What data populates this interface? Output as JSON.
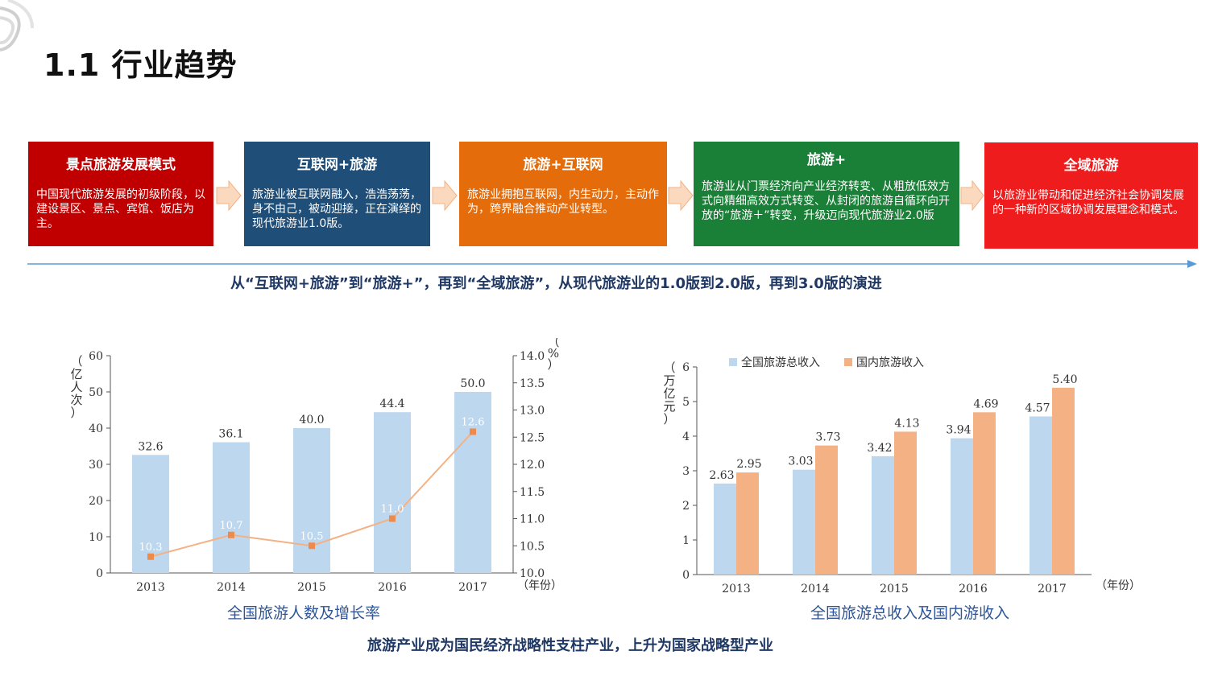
{
  "title": "1.1 行业趋势",
  "colors": {
    "stage1": "#c00000",
    "stage2": "#1f4e79",
    "stage3": "#e46c0a",
    "stage4": "#1a7f37",
    "stage5": "#ee1c1c",
    "caption": "#1f3864",
    "bar_blue": "#bdd7ee",
    "bar_orange": "#f4b183",
    "line": "#f4b183"
  },
  "stages": [
    {
      "head": "景点旅游发展模式",
      "desc": "中国现代旅游发展的初级阶段，以建设景区、景点、宾馆、饭店为主。"
    },
    {
      "head": "互联网+旅游",
      "desc": "旅游业被互联网融入，浩浩荡荡，身不由己，被动迎接，正在演绎的现代旅游业1.0版。"
    },
    {
      "head": "旅游+互联网",
      "desc": "旅游业拥抱互联网，内生动力，主动作为，跨界融合推动产业转型。"
    },
    {
      "head": "旅游+",
      "desc": "旅游业从门票经济向产业经济转变、从粗放低效方式向精细高效方式转变、从封闭的旅游自循环向开放的“旅游＋”转变，升级迈向现代旅游业2.0版"
    },
    {
      "head": "全域旅游",
      "desc": "以旅游业带动和促进经济社会协调发展的一种新的区域协调发展理念和模式。"
    }
  ],
  "timeline_caption": "从“互联网+旅游”到“旅游+”，再到“全域旅游”，从现代旅游业的1.0版到2.0版，再到3.0版的演进",
  "bottom_caption": "旅游产业成为国民经济战略性支柱产业，上升为国家战略型产业",
  "chart_data": [
    {
      "type": "bar",
      "title": "全国旅游人数及增长率",
      "categories": [
        "2013",
        "2014",
        "2015",
        "2016",
        "2017"
      ],
      "x_unit": "（年份）",
      "ylabel": "（亿人次）",
      "ylim": [
        0,
        60
      ],
      "yticks": [
        "0",
        "10",
        "20",
        "30",
        "40",
        "50",
        "60"
      ],
      "series": [
        {
          "kind": "bar",
          "values": [
            32.6,
            36.1,
            40.0,
            44.4,
            50.0
          ],
          "labels": [
            "32.6",
            "36.1",
            "40.0",
            "44.4",
            "50.0"
          ]
        },
        {
          "kind": "line",
          "axis": "right",
          "values": [
            10.3,
            10.7,
            10.5,
            11.0,
            12.6
          ],
          "labels": [
            "10.3",
            "10.7",
            "10.5",
            "11.0",
            "12.6"
          ]
        }
      ],
      "y2label": "（%）",
      "y2lim": [
        10.0,
        14.0
      ],
      "y2ticks": [
        "10.0",
        "10.5",
        "11.0",
        "11.5",
        "12.0",
        "12.5",
        "13.0",
        "13.5",
        "14.0"
      ]
    },
    {
      "type": "bar",
      "title": "全国旅游总收入及国内游收入",
      "categories": [
        "2013",
        "2014",
        "2015",
        "2016",
        "2017"
      ],
      "x_unit": "（年份）",
      "ylabel": "（万亿元）",
      "ylim": [
        0,
        6
      ],
      "yticks": [
        "0",
        "1",
        "2",
        "3",
        "4",
        "5",
        "6"
      ],
      "legend_position": "top-left",
      "series": [
        {
          "name": "全国旅游总收入",
          "values": [
            2.63,
            3.03,
            3.42,
            3.94,
            4.57
          ],
          "labels": [
            "2.63",
            "3.03",
            "3.42",
            "3.94",
            "4.57"
          ]
        },
        {
          "name": "国内旅游收入",
          "values": [
            2.95,
            3.73,
            4.13,
            4.69,
            5.4
          ],
          "labels": [
            "2.95",
            "3.73",
            "4.13",
            "4.69",
            "5.40"
          ]
        }
      ]
    }
  ]
}
